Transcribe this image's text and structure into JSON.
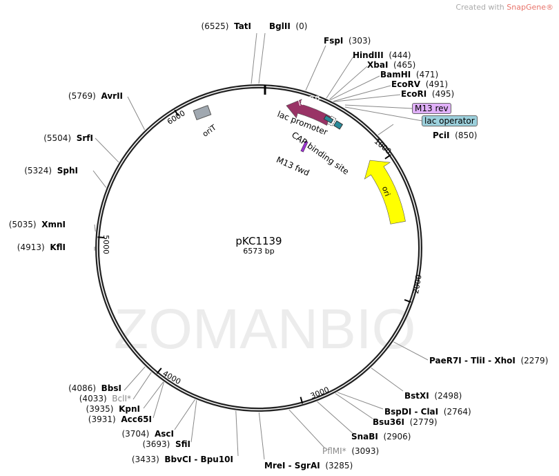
{
  "credit": {
    "prefix": "Created with ",
    "brand": "SnapGene®"
  },
  "watermark": "ZOMANBIO",
  "plasmid": {
    "name": "pKC1139",
    "length_label": "6573 bp",
    "length_bp": 6573
  },
  "ticks": [
    "1000",
    "2000",
    "3000",
    "4000",
    "5000",
    "6000"
  ],
  "sites": [
    {
      "name": "TatI",
      "pos": "(6525)",
      "bp": 6525
    },
    {
      "name": "BglII",
      "pos": "(0)",
      "bp": 0
    },
    {
      "name": "FspI",
      "pos": "(303)",
      "bp": 303
    },
    {
      "name": "HindIII",
      "pos": "(444)",
      "bp": 444
    },
    {
      "name": "XbaI",
      "pos": "(465)",
      "bp": 465
    },
    {
      "name": "BamHI",
      "pos": "(471)",
      "bp": 471
    },
    {
      "name": "EcoRV",
      "pos": "(491)",
      "bp": 491
    },
    {
      "name": "EcoRI",
      "pos": "(495)",
      "bp": 495
    },
    {
      "name": "PciI",
      "pos": "(850)",
      "bp": 850
    },
    {
      "name": "PaeR7I - TliI - XhoI",
      "pos": "(2279)",
      "bp": 2279
    },
    {
      "name": "BstXI",
      "pos": "(2498)",
      "bp": 2498
    },
    {
      "name": "BspDI - ClaI",
      "pos": "(2764)",
      "bp": 2764
    },
    {
      "name": "Bsu36I",
      "pos": "(2779)",
      "bp": 2779
    },
    {
      "name": "SnaBI",
      "pos": "(2906)",
      "bp": 2906
    },
    {
      "name": "PflMI*",
      "pos": "(3093)",
      "bp": 3093
    },
    {
      "name": "MreI - SgrAI",
      "pos": "(3285)",
      "bp": 3285
    },
    {
      "name": "BbvCI - Bpu10I",
      "pos": "(3433)",
      "bp": 3433
    },
    {
      "name": "SfiI",
      "pos": "(3693)",
      "bp": 3693
    },
    {
      "name": "AscI",
      "pos": "(3704)",
      "bp": 3704
    },
    {
      "name": "Acc65I",
      "pos": "(3931)",
      "bp": 3931
    },
    {
      "name": "KpnI",
      "pos": "(3935)",
      "bp": 3935
    },
    {
      "name": "BclI*",
      "pos": "(4033)",
      "bp": 4033
    },
    {
      "name": "BbsI",
      "pos": "(4086)",
      "bp": 4086
    },
    {
      "name": "KflI",
      "pos": "(4913)",
      "bp": 4913
    },
    {
      "name": "XmnI",
      "pos": "(5035)",
      "bp": 5035
    },
    {
      "name": "SphI",
      "pos": "(5324)",
      "bp": 5324
    },
    {
      "name": "SrfI",
      "pos": "(5504)",
      "bp": 5504
    },
    {
      "name": "AvrII",
      "pos": "(5769)",
      "bp": 5769
    }
  ],
  "features": {
    "m13_rev": {
      "label": "M13 rev",
      "color": "#e0b0f8"
    },
    "lac_operator": {
      "label": "lac operator",
      "color": "#9cd0dc"
    },
    "lacZa": {
      "label": "lacZα",
      "color": "#993366"
    },
    "lac_promoter": {
      "label": "lac promoter"
    },
    "cap_site": {
      "label": "CAP binding site",
      "color": "#2a8a9a"
    },
    "m13_fwd": {
      "label": "M13 fwd",
      "color": "#9933cc"
    },
    "ori": {
      "label": "ori",
      "color": "#ffff00"
    },
    "oriT": {
      "label": "oriT",
      "color": "#a0a8b0"
    }
  }
}
